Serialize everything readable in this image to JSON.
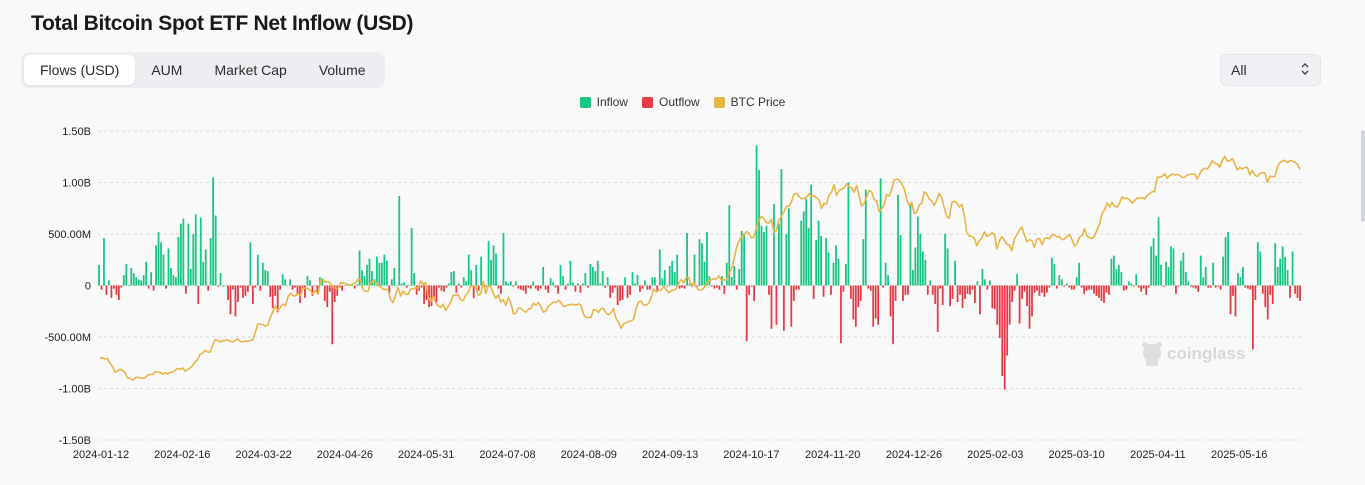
{
  "title": "Total Bitcoin Spot ETF Net Inflow (USD)",
  "tabs": [
    {
      "label": "Flows (USD)",
      "active": true
    },
    {
      "label": "AUM",
      "active": false
    },
    {
      "label": "Market Cap",
      "active": false
    },
    {
      "label": "Volume",
      "active": false
    }
  ],
  "range_select": {
    "value": "All",
    "icon": "chevron-up-down-icon"
  },
  "watermark": "coinglass",
  "colors": {
    "inflow": "#16c784",
    "outflow": "#ea3943",
    "price": "#e8b647",
    "grid": "#dcdcdc"
  },
  "chart_data": {
    "type": "bar",
    "title": "Total Bitcoin Spot ETF Net Inflow (USD)",
    "legend": [
      "Inflow",
      "Outflow",
      "BTC Price"
    ],
    "legend_position": "top-center",
    "grid": true,
    "ylim": [
      -1500000000,
      1500000000
    ],
    "y_ticks": [
      "1.50B",
      "1.00B",
      "500.00M",
      "0",
      "-500.00M",
      "-1.00B",
      "-1.50B"
    ],
    "x_tick_labels": [
      "2024-01-12",
      "2024-02-16",
      "2024-03-22",
      "2024-04-26",
      "2024-05-31",
      "2024-07-08",
      "2024-08-09",
      "2024-09-13",
      "2024-10-17",
      "2024-11-20",
      "2024-12-26",
      "2025-02-03",
      "2025-03-10",
      "2025-04-11",
      "2025-05-16"
    ],
    "series": [
      {
        "name": "Inflow",
        "values_millions": [
          200,
          -40,
          460,
          -90,
          50,
          -120,
          -30,
          -90,
          -140,
          -20,
          100,
          210,
          0,
          170,
          120,
          80,
          60,
          50,
          100,
          230,
          -30,
          130,
          -50,
          390,
          520,
          420,
          300,
          -30,
          360,
          170,
          100,
          80,
          470,
          600,
          650,
          -80,
          600,
          160,
          500,
          690,
          -180,
          660,
          230,
          350,
          -50,
          460,
          1050,
          680,
          -10,
          120,
          -10,
          0,
          -140,
          -280,
          -40,
          -300,
          -160,
          -20,
          -120,
          -100,
          -60,
          420,
          -180,
          -20,
          300,
          -50,
          220,
          150,
          140,
          -110,
          -220,
          -100,
          -260,
          -40,
          110,
          60,
          0,
          60,
          -40,
          -20,
          -90,
          -170,
          -40,
          -120,
          90,
          50,
          -100,
          0,
          -60,
          80,
          70,
          -150,
          -210,
          -60,
          -570,
          -160,
          -100,
          -20,
          -50,
          0,
          20,
          0,
          10,
          -30,
          10,
          340,
          150,
          90,
          200,
          260,
          140,
          60,
          280,
          220,
          220,
          300,
          240,
          -80,
          60,
          170,
          0,
          870,
          20,
          30,
          -20,
          0,
          560,
          120,
          -90,
          -50,
          -20,
          -180,
          -140,
          -210,
          -200,
          -140,
          -160,
          -20,
          -50,
          -60,
          -20,
          20,
          130,
          140,
          -70,
          20,
          -20,
          80,
          40,
          300,
          150,
          -120,
          200,
          -50,
          280,
          20,
          -10,
          430,
          250,
          390,
          310,
          -30,
          -80,
          510,
          40,
          20,
          40,
          -10,
          40,
          -30,
          -40,
          -50,
          -80,
          -20,
          -30,
          40,
          -30,
          -50,
          -30,
          180,
          -40,
          -70,
          70,
          30,
          -20,
          -80,
          200,
          90,
          -40,
          20,
          240,
          30,
          -60,
          20,
          -70,
          20,
          120,
          -20,
          210,
          180,
          140,
          240,
          20,
          140,
          -20,
          80,
          -120,
          -70,
          -20,
          -190,
          -150,
          -140,
          80,
          -120,
          -90,
          130,
          20,
          100,
          -60,
          -30,
          50,
          -40,
          -40,
          80,
          80,
          -50,
          350,
          70,
          150,
          -10,
          190,
          240,
          130,
          300,
          -30,
          -20,
          -30,
          510,
          20,
          -10,
          300,
          -10,
          450,
          410,
          230,
          520,
          90,
          -10,
          -30,
          -20,
          -40,
          90,
          -80,
          220,
          780,
          80,
          190,
          -40,
          160,
          530,
          510,
          -540,
          -90,
          -10,
          -150,
          1360,
          1120,
          580,
          520,
          580,
          -90,
          -420,
          790,
          -380,
          600,
          1130,
          -440,
          500,
          750,
          -400,
          -150,
          -40,
          -40,
          630,
          720,
          840,
          560,
          980,
          -130,
          440,
          630,
          480,
          -110,
          460,
          320,
          -90,
          220,
          390,
          260,
          -560,
          -60,
          210,
          1000,
          -130,
          -330,
          -400,
          -210,
          -150,
          450,
          930,
          -30,
          -50,
          -400,
          -320,
          -380,
          1040,
          -20,
          220,
          100,
          -300,
          -570,
          -150,
          880,
          490,
          -150,
          -90,
          -90,
          800,
          150,
          370,
          670,
          500,
          330,
          250,
          -90,
          50,
          -90,
          -180,
          -450,
          -30,
          -190,
          500,
          360,
          -200,
          -130,
          240,
          -160,
          -90,
          -220,
          -130,
          -80,
          -90,
          -40,
          -170,
          40,
          -280,
          160,
          60,
          -40,
          50,
          -220,
          -230,
          -380,
          -510,
          -880,
          -1010,
          -680,
          -380,
          -160,
          -50,
          110,
          -370,
          -130,
          -60,
          -200,
          -420,
          -300,
          -70,
          -50,
          -100,
          -70,
          -110,
          -70,
          -20,
          270,
          210,
          -30,
          100,
          60,
          -10,
          20,
          -20,
          -40,
          -40,
          80,
          220,
          -20,
          -80,
          -50,
          -40,
          -40,
          -80,
          -100,
          -120,
          -150,
          -170,
          -70,
          -90,
          260,
          290,
          160,
          200,
          130,
          -50,
          -40,
          40,
          20,
          -10,
          110,
          -20,
          -60,
          -30,
          -90,
          -20,
          380,
          460,
          290,
          660,
          200,
          -10,
          230,
          180,
          380,
          360,
          -80,
          -10,
          240,
          320,
          130,
          40,
          -10,
          -20,
          -30,
          -60,
          290,
          80,
          180,
          -20,
          -20,
          220,
          -20,
          -10,
          -40,
          280,
          470,
          520,
          -280,
          -100,
          -300,
          120,
          80,
          180,
          -20,
          -30,
          -40,
          -620,
          -140,
          420,
          330,
          -80,
          -210,
          -330,
          -90,
          -180,
          410,
          180,
          260,
          380,
          280,
          150,
          -120,
          330,
          -80,
          -120,
          -150
        ]
      }
    ],
    "price_line_values_k": [
      46.3,
      46.4,
      46.0,
      46.2,
      44.7,
      43.6,
      41.8,
      42.2,
      42.8,
      42.4,
      41.7,
      40.0,
      39.9,
      39.3,
      40.0,
      40.3,
      40.0,
      39.9,
      40.1,
      40.9,
      41.1,
      41.1,
      41.9,
      41.9,
      41.8,
      41.2,
      41.6,
      41.3,
      41.8,
      41.9,
      42.5,
      43.0,
      42.8,
      43.2,
      42.1,
      42.7,
      43.2,
      44.0,
      45.1,
      45.9,
      47.6,
      47.9,
      48.8,
      48.2,
      48.2,
      50.5,
      52.2,
      51.8,
      51.4,
      51.8,
      51.9,
      52.1,
      51.6,
      51.5,
      51.9,
      52.4,
      51.6,
      51.4,
      51.7,
      51.6,
      51.9,
      52.1,
      54.5,
      57.1,
      57.1,
      56.9,
      56.4,
      56.8,
      59.3,
      61.1,
      62.7,
      61.3,
      62.4,
      63.4,
      62.9,
      65.6,
      66.9,
      66.1,
      66.0,
      66.7,
      66.1,
      68.6,
      68.4,
      68.4,
      67.7,
      66.7,
      67.7,
      66.5,
      71.0,
      71.2,
      70.3,
      70.6,
      69.9,
      68.8,
      68.4,
      68.3,
      70.2,
      70.1,
      70.0,
      69.6,
      69.4,
      69.9,
      70.1,
      71.3,
      71.1,
      68.1,
      67.4,
      67.5,
      70.1,
      70.8,
      70.4,
      69.3,
      68.9,
      68.1,
      68.1,
      67.9,
      64.8,
      63.9,
      66.3,
      68.7,
      65.9,
      67.5,
      66.5,
      66.5,
      68.2,
      68.2,
      68.6,
      68.4,
      70.7,
      69.6,
      70.2,
      65.5,
      64.1,
      65.9,
      63.8,
      62.9,
      62.3,
      63.4,
      61.4,
      62.6,
      63.9,
      66.2,
      66.3,
      66.4,
      64.8,
      64.5,
      66.3,
      67.3,
      69.2,
      69.1,
      69.0,
      66.2,
      66.7,
      70.5,
      66.8,
      69.2,
      68.9,
      66.8,
      65.2,
      66.3,
      64.1,
      64.8,
      63.1,
      65.6,
      63.7,
      60.3,
      60.5,
      62.1,
      62.1,
      61.3,
      60.8,
      61.8,
      62.0,
      63.7,
      63.1,
      63.9,
      62.6,
      60.8,
      61.3,
      62.7,
      63.4,
      64.0,
      63.9,
      64.6,
      63.9,
      62.6,
      62.9,
      63.1,
      63.3,
      63.3,
      63.1,
      63.5,
      63.0,
      60.2,
      59.2,
      59.2,
      59.2,
      61.7,
      61.5,
      60.8,
      62.0,
      62.0,
      60.6,
      60.0,
      60.7,
      62.0,
      58.8,
      57.7,
      55.7,
      57.1,
      57.5,
      57.9,
      58.1,
      58.6,
      62.0,
      64.1,
      64.4,
      63.1,
      63.1,
      63.6,
      65.5,
      68.2,
      67.2,
      67.7,
      67.9,
      69.0,
      68.0,
      67.0,
      67.6,
      67.8,
      68.3,
      70.0,
      71.2,
      70.1,
      71.9,
      71.8,
      69.5,
      70.2,
      68.9,
      67.9,
      67.9,
      68.4,
      70.0,
      70.7,
      71.1,
      71.5,
      71.3,
      72.4,
      71.1,
      71.1,
      71.0,
      72.8,
      74.4,
      77.2,
      81.1,
      83.3,
      84.6,
      85.1,
      86.4,
      85.9,
      84.3,
      84.7,
      87.6,
      90.0,
      91.2,
      90.5,
      89.2,
      89.1,
      90.3,
      86.1,
      86.7,
      90.0,
      91.2,
      92.6,
      94.4,
      94.4,
      95.7,
      98.2,
      98.5,
      97.5,
      96.8,
      96.9,
      97.2,
      98.4,
      97.5,
      97.7,
      97.1,
      96.4,
      93.7,
      95.3,
      95.1,
      97.9,
      98.8,
      101.2,
      97.8,
      99.4,
      99.8,
      100.2,
      101.5,
      100.5,
      100.3,
      98.8,
      101.0,
      97.6,
      94.5,
      95.3,
      97.4,
      99.4,
      99.0,
      96.6,
      96.1,
      92.7,
      93.6,
      94.8,
      98.2,
      97.6,
      99.7,
      102.7,
      103.0,
      102.7,
      101.5,
      100.0,
      96.7,
      94.5,
      95.7,
      92.1,
      92.5,
      94.8,
      95.3,
      99.0,
      98.3,
      96.7,
      96.1,
      94.7,
      96.2,
      98.5,
      97.0,
      93.8,
      91.1,
      90.6,
      95.6,
      96.0,
      95.5,
      94.2,
      95.0,
      91.6,
      86.0,
      84.9,
      84.9,
      84.3,
      81.9,
      83.5,
      84.2,
      86.3,
      84.9,
      85.3,
      86.0,
      85.5,
      80.9,
      83.4,
      84.8,
      83.6,
      82.3,
      82.2,
      80.3,
      84.1,
      85.4,
      86.8,
      87.8,
      85.3,
      83.1,
      83.8,
      83.5,
      81.4,
      84.1,
      84.2,
      82.2,
      84.2,
      84.4,
      84.1,
      85.3,
      85.4,
      84.7,
      84.8,
      83.8,
      84.1,
      84.8,
      85.5,
      83.8,
      81.8,
      82.5,
      84.6,
      85.1,
      87.3,
      84.9,
      84.4,
      84.2,
      85.0,
      87.0,
      88.8,
      92.1,
      93.3,
      95.4,
      94.2,
      95.6,
      94.4,
      94.1,
      95.5,
      97.4,
      96.8,
      97.0,
      96.4,
      95.4,
      96.2,
      97.0,
      96.9,
      97.1,
      96.7,
      97.8,
      98.4,
      99.0,
      99.0,
      103.6,
      103.6,
      103.9,
      104.6,
      103.3,
      104.1,
      104.6,
      104.3,
      104.5,
      104.2,
      103.5,
      103.6,
      104.3,
      104.5,
      104.6,
      104.6,
      103.0,
      104.8,
      105.9,
      106.5,
      106.2,
      107.3,
      108.8,
      108.0,
      107.8,
      106.8,
      109.0,
      110.2,
      108.7,
      108.8,
      109.6,
      107.7,
      105.9,
      106.7,
      106.2,
      106.7,
      106.7,
      104.4,
      105.7,
      104.3,
      103.8,
      104.7,
      105.0,
      105.0,
      102.0,
      103.9,
      103.8,
      103.8,
      107.0,
      108.2,
      108.7,
      109.0,
      108.2,
      108.9,
      108.7,
      108.3,
      107.7,
      106.0
    ]
  }
}
